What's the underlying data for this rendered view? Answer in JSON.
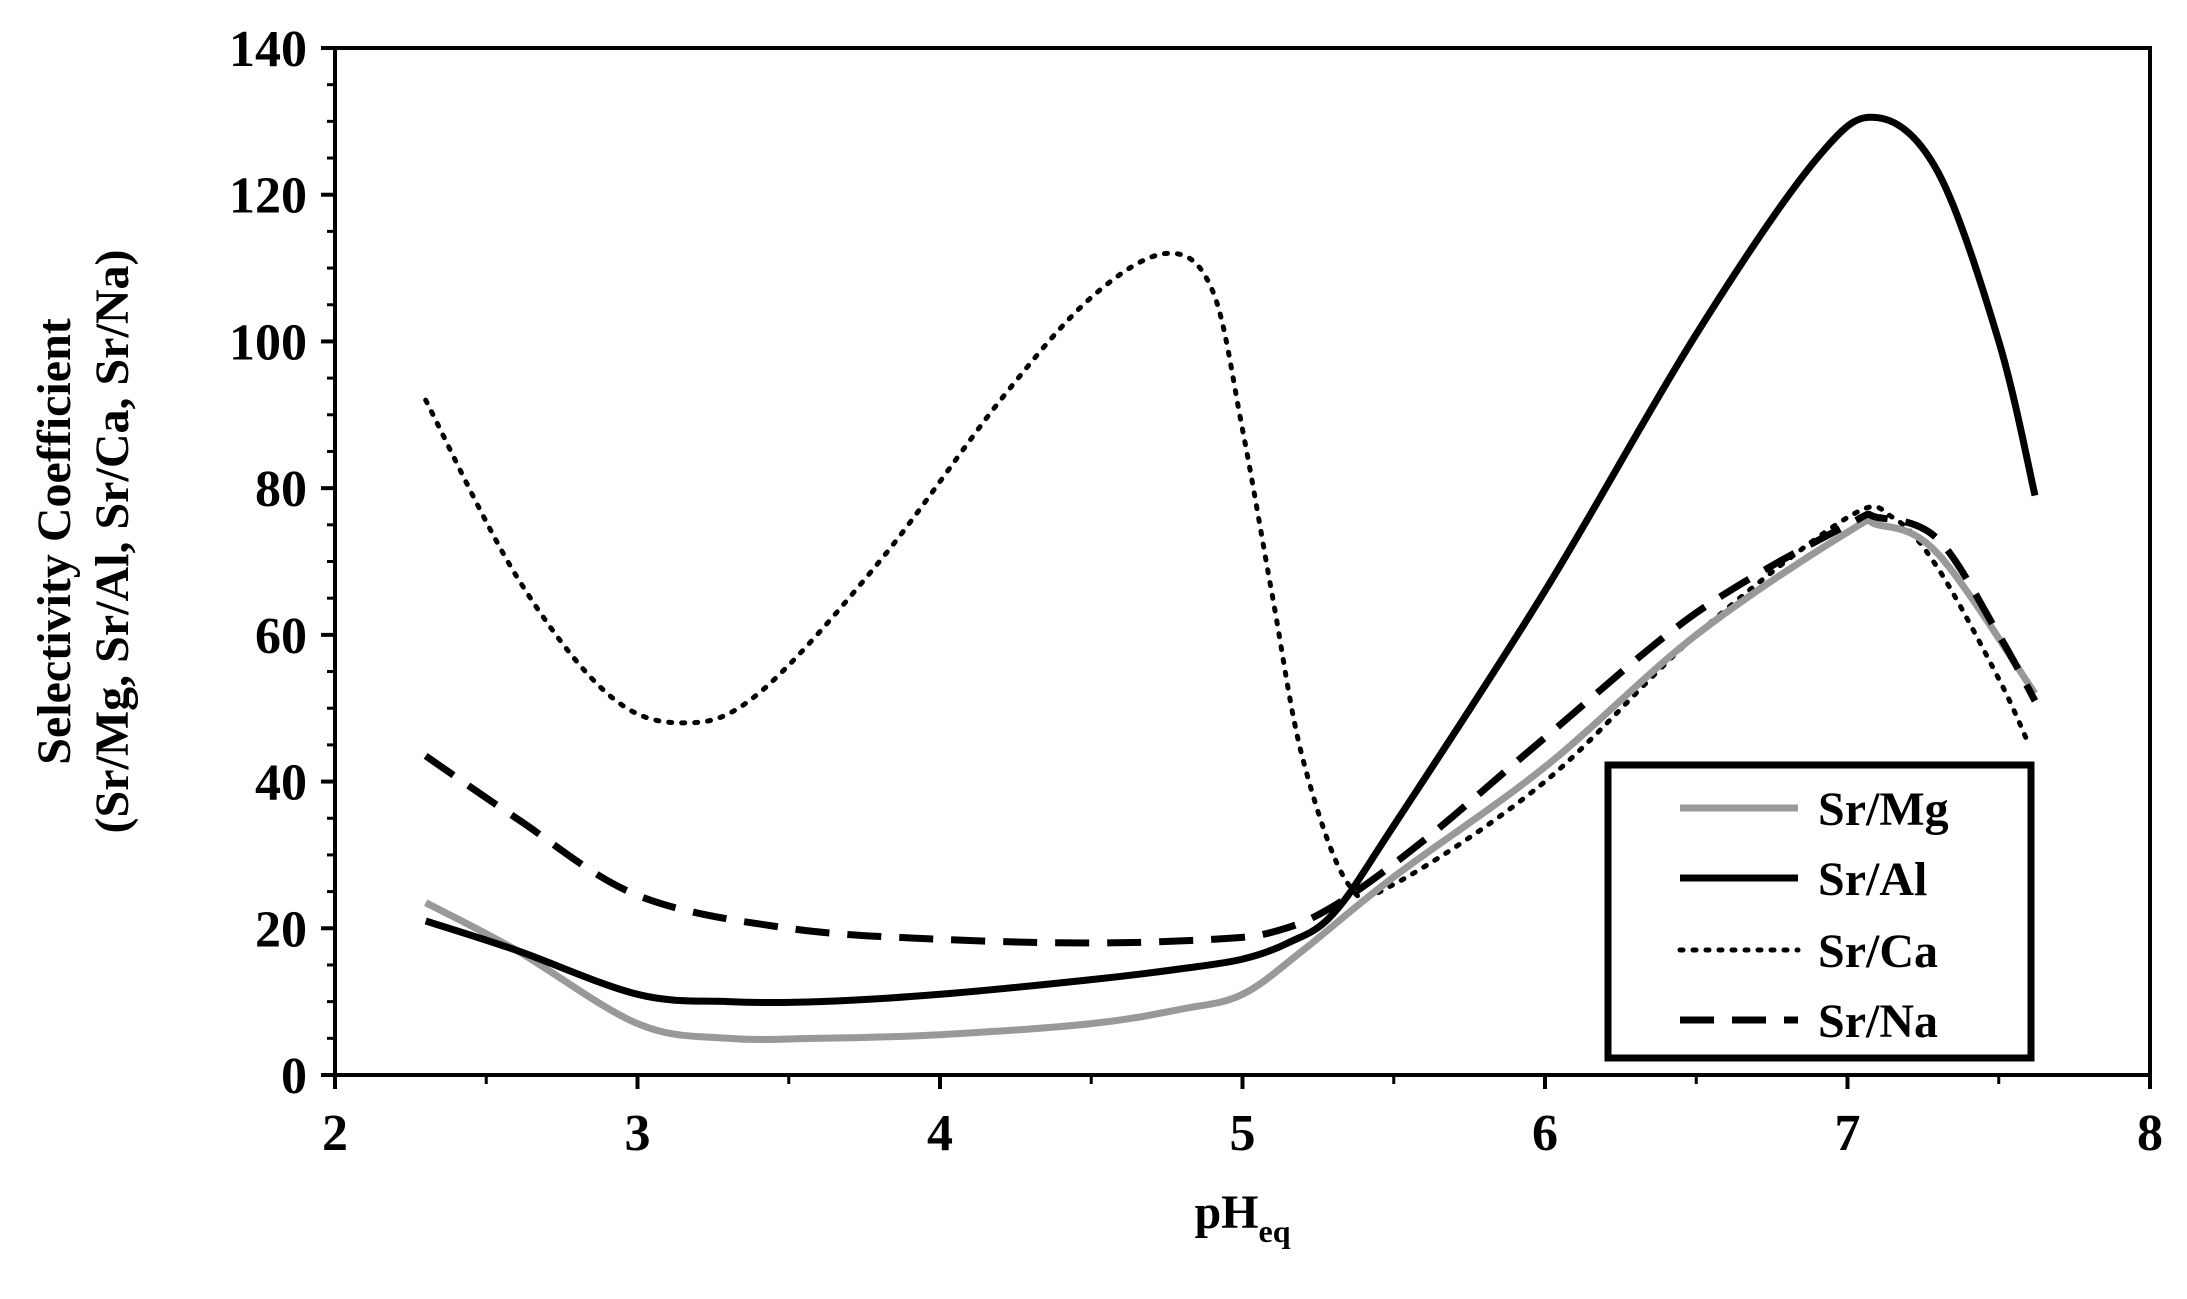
{
  "chart_data": {
    "type": "line",
    "title": "",
    "xlabel": "pH",
    "xlabel_subscript": "eq",
    "ylabel_line1": "Selectivity Coefficient",
    "ylabel_line2": "(Sr/Mg, Sr/Al, Sr/Ca, Sr/Na)",
    "xlim": [
      2,
      8
    ],
    "ylim": [
      0,
      140
    ],
    "x_ticks": [
      2,
      3,
      4,
      5,
      6,
      7,
      8
    ],
    "y_ticks": [
      0,
      20,
      40,
      60,
      80,
      100,
      120,
      140
    ],
    "grid": false,
    "legend_position": "bottom-right",
    "series": [
      {
        "name": "Sr/Mg",
        "color": "#999999",
        "style": "solid",
        "x": [
          2.3,
          2.6,
          3.0,
          3.3,
          3.6,
          4.0,
          4.5,
          4.8,
          5.0,
          5.2,
          5.5,
          6.0,
          6.5,
          7.0,
          7.1,
          7.3,
          7.62
        ],
        "values": [
          23.5,
          17,
          7,
          5,
          5,
          5.5,
          7,
          9,
          11,
          17,
          27,
          42,
          60,
          74,
          75,
          71,
          52
        ]
      },
      {
        "name": "Sr/Al",
        "color": "#000000",
        "style": "solid",
        "x": [
          2.3,
          2.6,
          3.0,
          3.3,
          3.6,
          4.0,
          4.5,
          4.8,
          5.0,
          5.15,
          5.3,
          5.5,
          6.0,
          6.5,
          6.9,
          7.1,
          7.3,
          7.5,
          7.62
        ],
        "values": [
          21,
          17,
          11,
          10,
          10,
          11,
          13,
          14.5,
          15.8,
          18,
          22,
          34,
          66,
          101,
          125,
          130.5,
          123,
          100,
          79
        ]
      },
      {
        "name": "Sr/Ca",
        "color": "#000000",
        "style": "dotted",
        "x": [
          2.3,
          2.6,
          2.9,
          3.15,
          3.4,
          3.8,
          4.2,
          4.5,
          4.75,
          4.9,
          5.0,
          5.1,
          5.2,
          5.35,
          5.5,
          6.0,
          6.5,
          7.0,
          7.15,
          7.3,
          7.5,
          7.6
        ],
        "values": [
          92,
          68,
          52,
          48,
          52,
          70,
          92,
          106,
          112,
          107,
          88,
          65,
          43,
          26,
          26,
          40,
          60,
          76,
          76,
          69,
          54,
          45
        ]
      },
      {
        "name": "Sr/Na",
        "color": "#000000",
        "style": "dashed",
        "x": [
          2.3,
          2.6,
          3.0,
          3.5,
          4.0,
          4.5,
          4.9,
          5.1,
          5.3,
          5.6,
          6.0,
          6.5,
          7.0,
          7.1,
          7.3,
          7.5,
          7.62
        ],
        "values": [
          43.5,
          35,
          24.5,
          20,
          18.5,
          18,
          18.5,
          19.5,
          23,
          32,
          46,
          63,
          75,
          76,
          73,
          60,
          51
        ]
      }
    ]
  }
}
